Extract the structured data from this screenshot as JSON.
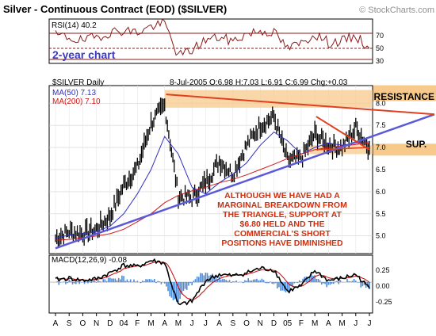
{
  "header": {
    "title": "Silver - Continuous Contract (EOD) ($SILVER)",
    "watermark": "© StockCharts.com"
  },
  "colors": {
    "panel_bg": "#ffffff",
    "outer_bg": "#ffffff",
    "grid": "#d0d0d0",
    "price": "#000000",
    "ma50": "#3030c8",
    "ma200": "#d01818",
    "trendline": "#5a5ad8",
    "resistance_line": "#e04020",
    "zone_fill": "#f7c98b",
    "annotation_text": "#d03010",
    "rsi_line": "#8b1a1a",
    "rsi_ref": "#8b1a1a",
    "macd_line": "#000000",
    "macd_signal": "#cc0000",
    "macd_hist": "#4a8ad8"
  },
  "rsi_panel": {
    "label": "RSI(14) 40.2",
    "note": "2-year chart",
    "ticks": [
      "70",
      "50",
      "30"
    ]
  },
  "price_panel": {
    "symbol_label": "$SILVER Daily",
    "ohlc": "8-Jul-2005  O:6.98  H:7.03  L:6.91  C:6.99  Chg:+0.03",
    "ma50_label": "MA(50) 7.13",
    "ma200_label": "MA(200) 7.10",
    "y_ticks": [
      "8.0",
      "7.5",
      "7.0",
      "6.5",
      "6.0",
      "5.5",
      "5.0"
    ],
    "resistance_label": "RESISTANCE",
    "support_label": "SUP.",
    "annotation": [
      "ALTHOUGH WE HAVE HAD A",
      "MARGINAL BREAKDOWN FROM",
      "THE TRIANGLE, SUPPORT AT",
      "$6.80 HELD AND THE",
      "COMMERCIAL'S SHORT",
      "POSITIONS HAVE DIMINISHED"
    ]
  },
  "macd_panel": {
    "label": "MACD(12,26,9) -0.08",
    "y_ticks": [
      "0.25",
      "0.00",
      "-0.25"
    ]
  },
  "x_axis": {
    "labels": [
      "A",
      "S",
      "O",
      "N",
      "D",
      "04",
      "F",
      "M",
      "A",
      "M",
      "J",
      "J",
      "A",
      "S",
      "O",
      "N",
      "D",
      "05",
      "F",
      "M",
      "A",
      "M",
      "J",
      "J"
    ]
  },
  "chart_data": {
    "type": "line",
    "title": "Silver - Continuous Contract (EOD) ($SILVER)",
    "xlabel": "",
    "ylabel": "",
    "x": [
      "2003-08",
      "2003-09",
      "2003-10",
      "2003-11",
      "2003-12",
      "2004-01",
      "2004-02",
      "2004-03",
      "2004-04",
      "2004-05",
      "2004-06",
      "2004-07",
      "2004-08",
      "2004-09",
      "2004-10",
      "2004-11",
      "2004-12",
      "2005-01",
      "2005-02",
      "2005-03",
      "2005-04",
      "2005-05",
      "2005-06",
      "2005-07"
    ],
    "ylim": [
      4.6,
      8.4
    ],
    "series": [
      {
        "name": "$SILVER Daily",
        "values": [
          4.95,
          5.1,
          5.05,
          5.15,
          5.45,
          6.15,
          6.55,
          7.55,
          7.95,
          5.9,
          5.85,
          6.2,
          6.7,
          6.4,
          7.05,
          7.5,
          7.7,
          6.7,
          6.75,
          7.3,
          7.05,
          7.0,
          7.45,
          6.99
        ]
      },
      {
        "name": "MA(50)",
        "values": [
          4.95,
          5.02,
          5.05,
          5.1,
          5.22,
          5.5,
          5.95,
          6.5,
          7.25,
          6.85,
          6.1,
          5.95,
          6.2,
          6.4,
          6.65,
          7.05,
          7.35,
          7.15,
          6.85,
          7.0,
          7.1,
          7.05,
          7.1,
          7.13
        ]
      },
      {
        "name": "MA(200)",
        "values": [
          4.9,
          4.92,
          4.96,
          5.0,
          5.05,
          5.15,
          5.32,
          5.5,
          5.75,
          5.92,
          6.02,
          6.1,
          6.2,
          6.28,
          6.38,
          6.5,
          6.62,
          6.75,
          6.85,
          6.95,
          7.0,
          7.03,
          7.07,
          7.1
        ]
      }
    ],
    "rsi": {
      "ylim": [
        20,
        80
      ],
      "values": [
        58,
        55,
        50,
        56,
        62,
        65,
        62,
        70,
        74,
        30,
        38,
        52,
        55,
        50,
        60,
        64,
        62,
        40,
        47,
        60,
        48,
        50,
        57,
        40.2
      ]
    },
    "macd": {
      "ylim": [
        -0.4,
        0.35
      ],
      "values": [
        0.03,
        0.05,
        0.02,
        0.04,
        0.12,
        0.22,
        0.2,
        0.28,
        0.25,
        -0.3,
        -0.25,
        0.02,
        0.1,
        0.08,
        0.12,
        0.18,
        0.16,
        -0.12,
        -0.05,
        0.15,
        0.02,
        0.05,
        0.1,
        -0.08
      ]
    }
  }
}
